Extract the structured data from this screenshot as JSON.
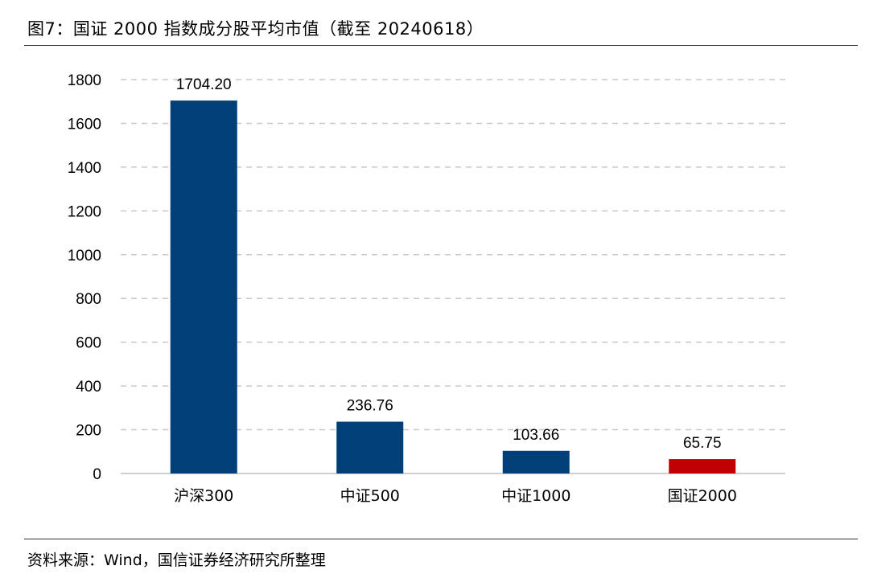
{
  "chart_data": {
    "type": "bar",
    "title": "图7：国证 2000 指数成分股平均市值（截至 20240618）",
    "source": "资料来源：Wind，国信证券经济研究所整理",
    "categories": [
      "沪深300",
      "中证500",
      "中证1000",
      "国证2000"
    ],
    "values": [
      1704.2,
      236.76,
      103.66,
      65.75
    ],
    "value_labels": [
      "1704.20",
      "236.76",
      "103.66",
      "65.75"
    ],
    "ylim": [
      0,
      1800
    ],
    "yticks": [
      0,
      200,
      400,
      600,
      800,
      1000,
      1200,
      1400,
      1600,
      1800
    ],
    "grid": true,
    "colors": [
      "#003f77",
      "#003f77",
      "#003f77",
      "#c00000"
    ],
    "gridline_color": "#c8c8c8"
  }
}
